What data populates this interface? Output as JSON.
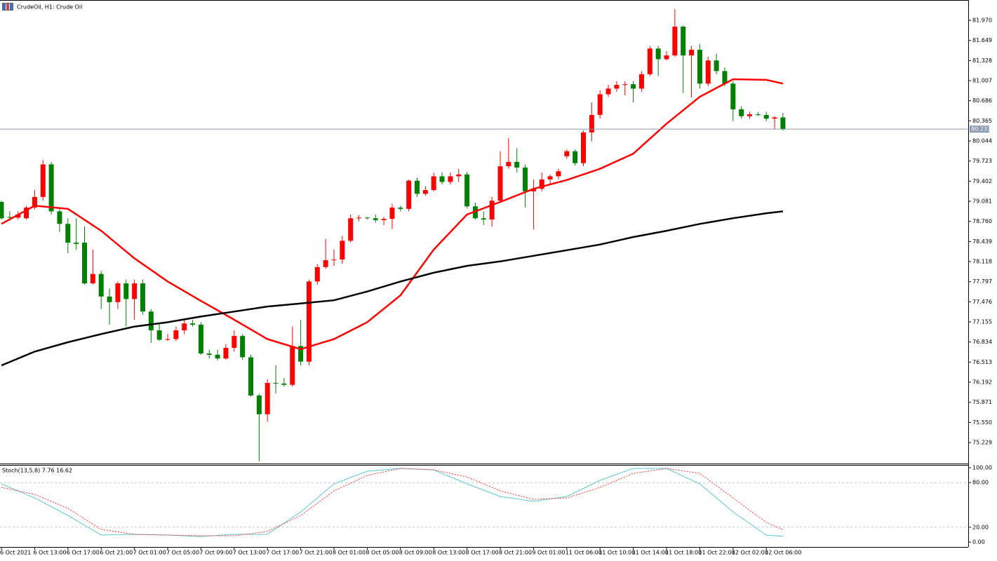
{
  "chart_data": [
    {
      "type": "candlestick",
      "title": "CrudeOil, H1:  Crude Oil",
      "categories": [
        "6 Oct 2021",
        null,
        null,
        null,
        "6 Oct 13:00",
        null,
        null,
        null,
        "6 Oct 17:00",
        null,
        null,
        null,
        "6 Oct 21:00",
        null,
        null,
        null,
        "7 Oct 01:00",
        null,
        null,
        null,
        "7 Oct 05:00",
        null,
        null,
        null,
        "7 Oct 09:00",
        null,
        null,
        null,
        "7 Oct 13:00",
        null,
        null,
        null,
        "7 Oct 17:00",
        null,
        null,
        null,
        "7 Oct 21:00",
        null,
        null,
        null,
        "8 Oct 01:00",
        null,
        null,
        null,
        "8 Oct 05:00",
        null,
        null,
        null,
        "8 Oct 09:00",
        null,
        null,
        null,
        "8 Oct 13:00",
        null,
        null,
        null,
        "8 Oct 17:00",
        null,
        null,
        null,
        "8 Oct 21:00",
        null,
        null,
        null,
        "9 Oct 01:00",
        null,
        null,
        null,
        "11 Oct 06:00",
        null,
        null,
        null,
        "11 Oct 10:00",
        null,
        null,
        null,
        "11 Oct 14:00",
        null,
        null,
        null,
        "11 Oct 18:00",
        null,
        null,
        null,
        "11 Oct 22:00",
        null,
        null,
        null,
        "12 Oct 02:00",
        null,
        null,
        null,
        "12 Oct 06:00",
        null,
        null
      ],
      "open": [
        79.07,
        78.83,
        78.82,
        78.81,
        78.98,
        79.15,
        79.67,
        78.92,
        78.72,
        78.42,
        78.42,
        77.77,
        77.92,
        77.56,
        77.47,
        77.77,
        77.52,
        77.77,
        77.32,
        77.02,
        76.87,
        76.88,
        77.02,
        77.13,
        77.11,
        76.65,
        76.63,
        76.57,
        76.74,
        76.93,
        76.59,
        75.98,
        75.68,
        76.18,
        76.17,
        76.15,
        76.77,
        76.52,
        77.8,
        78.03,
        78.14,
        78.15,
        78.45,
        78.81,
        78.82,
        78.81,
        78.78,
        78.8,
        78.98,
        78.96,
        79.41,
        79.2,
        79.26,
        79.48,
        79.39,
        79.48,
        79.51,
        79.0,
        78.81,
        78.79,
        79.09,
        79.64,
        79.71,
        79.62,
        79.24,
        79.28,
        79.43,
        79.48,
        79.8,
        79.88,
        79.69,
        80.18,
        80.46,
        80.79,
        80.88,
        80.94,
        80.95,
        80.88,
        81.11,
        81.52,
        81.35,
        81.41,
        81.87,
        81.41,
        81.5,
        80.96,
        81.33,
        81.16,
        80.96,
        80.55,
        80.44,
        80.47,
        80.46,
        80.4,
        80.42
      ],
      "high": [
        79.09,
        78.92,
        78.92,
        79.01,
        79.26,
        79.74,
        79.71,
        78.98,
        78.81,
        78.81,
        78.68,
        78.31,
        77.97,
        77.69,
        77.8,
        77.83,
        77.83,
        77.83,
        77.36,
        77.13,
        76.96,
        77.08,
        77.19,
        77.19,
        77.15,
        76.71,
        76.71,
        76.8,
        77.02,
        76.96,
        76.63,
        76.01,
        76.24,
        76.46,
        76.26,
        77.08,
        77.19,
        77.83,
        78.08,
        78.48,
        78.31,
        78.53,
        78.87,
        78.86,
        78.83,
        78.87,
        78.83,
        79.04,
        79.01,
        79.43,
        79.46,
        79.32,
        79.54,
        79.54,
        79.54,
        79.6,
        79.55,
        79.06,
        78.92,
        79.15,
        79.88,
        80.09,
        79.93,
        79.67,
        79.43,
        79.54,
        79.51,
        79.6,
        79.91,
        79.91,
        80.21,
        80.66,
        80.85,
        80.94,
        81.0,
        81.0,
        81.0,
        81.16,
        81.56,
        81.56,
        81.48,
        82.15,
        81.89,
        81.56,
        81.59,
        81.39,
        81.44,
        81.22,
        81.0,
        80.6,
        80.51,
        80.51,
        80.51,
        80.44,
        80.49
      ],
      "low": [
        78.79,
        78.77,
        78.79,
        78.79,
        78.95,
        79.09,
        78.87,
        78.59,
        78.25,
        78.31,
        77.75,
        77.75,
        77.36,
        77.11,
        77.36,
        77.08,
        77.19,
        77.27,
        76.82,
        76.85,
        76.85,
        76.85,
        76.96,
        77.08,
        76.63,
        76.57,
        76.54,
        76.55,
        76.68,
        76.55,
        75.96,
        74.93,
        75.56,
        76.01,
        76.12,
        76.12,
        76.46,
        76.46,
        77.75,
        78.0,
        78.05,
        78.08,
        78.42,
        78.76,
        78.79,
        78.74,
        78.7,
        78.64,
        78.92,
        78.92,
        79.15,
        79.17,
        79.24,
        79.35,
        79.35,
        79.39,
        78.97,
        78.79,
        78.7,
        78.68,
        79.06,
        79.6,
        79.54,
        78.98,
        78.63,
        79.24,
        79.35,
        79.43,
        79.76,
        79.65,
        79.64,
        80.04,
        80.4,
        80.75,
        80.83,
        80.77,
        80.66,
        80.83,
        81.08,
        81.08,
        81.33,
        81.39,
        80.81,
        80.74,
        80.88,
        80.92,
        81.11,
        80.92,
        80.36,
        80.4,
        80.4,
        80.44,
        80.36,
        80.23,
        80.21
      ],
      "close": [
        78.81,
        78.82,
        78.87,
        78.98,
        79.15,
        79.67,
        78.92,
        78.72,
        78.42,
        78.4,
        77.77,
        77.92,
        77.56,
        77.47,
        77.77,
        77.52,
        77.77,
        77.32,
        77.02,
        76.87,
        76.88,
        77.02,
        77.13,
        77.11,
        76.65,
        76.63,
        76.57,
        76.74,
        76.93,
        76.59,
        75.98,
        75.68,
        76.18,
        76.17,
        76.15,
        76.77,
        76.52,
        77.8,
        78.03,
        78.14,
        78.15,
        78.45,
        78.81,
        78.82,
        78.81,
        78.78,
        78.8,
        78.98,
        78.96,
        79.41,
        79.2,
        79.26,
        79.48,
        79.39,
        79.48,
        79.51,
        79.0,
        78.81,
        78.79,
        79.09,
        79.64,
        79.71,
        79.62,
        79.24,
        79.28,
        79.43,
        79.48,
        79.56,
        79.88,
        79.69,
        80.18,
        80.46,
        80.79,
        80.88,
        80.94,
        80.95,
        80.88,
        81.11,
        81.52,
        81.35,
        81.41,
        81.87,
        81.41,
        81.5,
        80.96,
        81.33,
        81.16,
        80.96,
        80.55,
        80.44,
        80.47,
        80.46,
        80.4,
        80.42,
        80.233
      ],
      "up_color": "#ff0000",
      "down_color": "#008000",
      "lines": [
        {
          "color": "#ff0000",
          "x": [
            0,
            4,
            8,
            12,
            16,
            20,
            24,
            28,
            32,
            36,
            40,
            44,
            48,
            52,
            56,
            60,
            64,
            68,
            72,
            76,
            80,
            84,
            88,
            92,
            94
          ],
          "values": [
            78.72,
            79.01,
            78.96,
            78.61,
            78.17,
            77.8,
            77.49,
            77.19,
            76.88,
            76.72,
            76.88,
            77.15,
            77.58,
            78.31,
            78.87,
            79.07,
            79.28,
            79.42,
            79.6,
            79.84,
            80.32,
            80.75,
            81.03,
            81.02,
            80.96
          ]
        },
        {
          "color": "#000000",
          "x": [
            0,
            4,
            8,
            12,
            16,
            20,
            24,
            28,
            32,
            36,
            40,
            44,
            48,
            52,
            56,
            60,
            64,
            68,
            72,
            76,
            80,
            84,
            88,
            92,
            94
          ],
          "values": [
            76.46,
            76.68,
            76.83,
            76.96,
            77.08,
            77.15,
            77.24,
            77.32,
            77.4,
            77.45,
            77.5,
            77.64,
            77.8,
            77.94,
            78.05,
            78.12,
            78.21,
            78.3,
            78.39,
            78.51,
            78.61,
            78.72,
            78.81,
            78.89,
            78.92
          ]
        }
      ],
      "ylim": [
        74.893,
        82.284
      ],
      "yticks": [
        {
          "value": 81.97,
          "label": "81.970"
        },
        81.649,
        81.328,
        81.007,
        80.686,
        80.365,
        80.044,
        79.723,
        79.402,
        79.081,
        {
          "value": 78.76,
          "label": "78.760"
        },
        78.439,
        78.118,
        77.797,
        77.476,
        77.155,
        76.834,
        76.513,
        76.192,
        75.871,
        {
          "value": 75.55,
          "label": "75.550"
        },
        75.229
      ],
      "last_price": {
        "value": 80.233,
        "label": "80.233"
      }
    },
    {
      "type": "line",
      "title": "Stoch(13,5,8) 7.76 16.62",
      "series": [
        {
          "color": "#5bc8d0",
          "style": "solid",
          "x": [
            0,
            4,
            8,
            12,
            16,
            20,
            24,
            28,
            32,
            36,
            40,
            44,
            48,
            52,
            56,
            60,
            64,
            68,
            72,
            76,
            80,
            84,
            88,
            92,
            94
          ],
          "values": [
            78.3,
            59.4,
            35.8,
            9.4,
            10.4,
            9.4,
            7.5,
            10.4,
            10.4,
            40.6,
            78.3,
            95.3,
            99.1,
            97.2,
            78.3,
            61.3,
            54.7,
            61.3,
            83.0,
            99.1,
            99.1,
            78.3,
            40.6,
            9.4,
            7.76
          ]
        },
        {
          "color": "#ff3030",
          "style": "dotted",
          "x": [
            0,
            4,
            8,
            12,
            16,
            20,
            24,
            28,
            32,
            36,
            40,
            44,
            48,
            52,
            56,
            60,
            64,
            68,
            72,
            76,
            80,
            84,
            88,
            92,
            94
          ],
          "values": [
            73.6,
            64.2,
            45.3,
            17.0,
            10.4,
            9.4,
            8.5,
            8.5,
            14.2,
            35.8,
            68.9,
            89.6,
            99.1,
            97.2,
            87.7,
            68.9,
            57.5,
            59.4,
            73.6,
            92.5,
            99.1,
            92.5,
            59.4,
            26.4,
            16.62
          ]
        }
      ],
      "ylim": [
        -6.6,
        103.8
      ],
      "yticks": [
        {
          "value": 100,
          "label": "100.00"
        },
        {
          "value": 80,
          "label": "80.00"
        },
        {
          "value": 20,
          "label": "20.00"
        },
        {
          "value": 0,
          "label": "0.00"
        }
      ],
      "levels": [
        80,
        20
      ]
    }
  ]
}
